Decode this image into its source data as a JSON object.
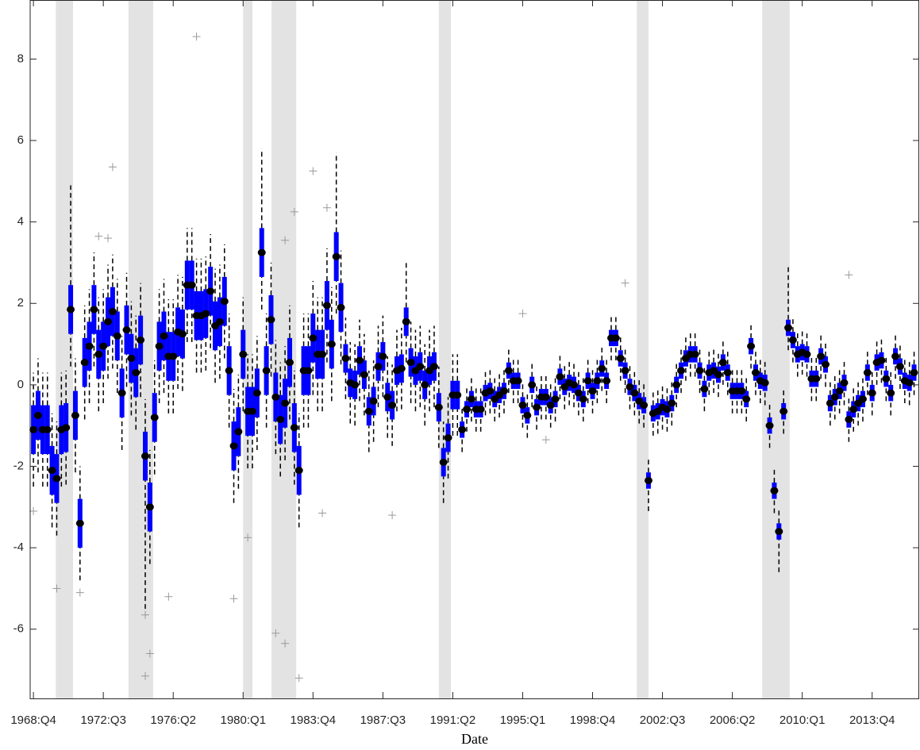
{
  "chart_data": {
    "type": "box",
    "x_label": "Date",
    "xlim": [
      -0.7,
      190.1
    ],
    "xticks": [
      {
        "value": 0,
        "label": "1968:Q4"
      },
      {
        "value": 15,
        "label": "1972:Q3"
      },
      {
        "value": 30,
        "label": "1976:Q2"
      },
      {
        "value": 45,
        "label": "1980:Q1"
      },
      {
        "value": 60,
        "label": "1983:Q4"
      },
      {
        "value": 75,
        "label": "1987:Q3"
      },
      {
        "value": 90,
        "label": "1991:Q2"
      },
      {
        "value": 105,
        "label": "1995:Q1"
      },
      {
        "value": 120,
        "label": "1998:Q4"
      },
      {
        "value": 135,
        "label": "2002:Q3"
      },
      {
        "value": 150,
        "label": "2006:Q2"
      },
      {
        "value": 165,
        "label": "2010:Q1"
      },
      {
        "value": 180,
        "label": "2013:Q4"
      }
    ],
    "ylim": [
      -7.7,
      9.45
    ],
    "yticks": [
      -6,
      -4,
      -2,
      0,
      2,
      4,
      6,
      8
    ],
    "box_color": "#0000ff",
    "median_color": "#000000",
    "whisker_color": "#000000",
    "outlier_color": "#9a9a9a",
    "shade_color": "#e3e3e3",
    "shaded": [
      [
        4.8,
        8.5
      ],
      [
        20.4,
        25.7
      ],
      [
        45,
        47
      ],
      [
        51.1,
        56.4
      ],
      [
        87,
        89.6
      ],
      [
        129.5,
        132
      ],
      [
        156.4,
        162.3
      ]
    ],
    "median": [
      -1.1,
      -0.75,
      -1.1,
      -1.1,
      -2.1,
      -2.3,
      -1.1,
      -1.05,
      1.85,
      -0.75,
      -3.4,
      0.55,
      0.95,
      1.85,
      0.75,
      0.95,
      1.55,
      1.8,
      1.2,
      -0.2,
      1.35,
      0.65,
      0.3,
      1.1,
      -1.75,
      -3.0,
      -0.8,
      0.95,
      1.2,
      0.7,
      0.7,
      1.3,
      1.25,
      2.45,
      2.45,
      1.7,
      1.7,
      1.75,
      2.3,
      1.45,
      1.55,
      2.05,
      0.35,
      -1.5,
      -1.15,
      0.75,
      -0.65,
      -0.65,
      -0.2,
      3.25,
      0.35,
      1.6,
      -0.3,
      -0.85,
      -0.45,
      0.55,
      -1.05,
      -2.1,
      0.35,
      0.35,
      1.15,
      0.75,
      0.75,
      1.95,
      1.0,
      3.15,
      1.9,
      0.65,
      0.05,
      0.0,
      0.6,
      0.25,
      -0.65,
      -0.4,
      0.45,
      0.7,
      -0.3,
      -0.5,
      0.35,
      0.4,
      1.55,
      0.55,
      0.35,
      0.45,
      0.0,
      0.35,
      0.45,
      -0.55,
      -1.9,
      -1.3,
      -0.25,
      -0.25,
      -1.1,
      -0.6,
      -0.35,
      -0.6,
      -0.6,
      -0.2,
      -0.15,
      -0.35,
      -0.25,
      -0.15,
      0.35,
      0.1,
      0.1,
      -0.5,
      -0.75,
      0.0,
      -0.55,
      -0.3,
      -0.3,
      -0.5,
      -0.35,
      0.2,
      -0.05,
      0.05,
      0.0,
      -0.2,
      -0.35,
      0.1,
      -0.15,
      0.1,
      0.4,
      0.1,
      1.15,
      1.15,
      0.65,
      0.35,
      -0.05,
      -0.2,
      -0.4,
      -0.5,
      -2.35,
      -0.7,
      -0.65,
      -0.55,
      -0.6,
      -0.45,
      0.0,
      0.35,
      0.65,
      0.75,
      0.75,
      0.35,
      -0.1,
      0.3,
      0.35,
      0.25,
      0.55,
      0.3,
      -0.15,
      -0.15,
      -0.15,
      -0.35,
      0.95,
      0.3,
      0.1,
      0.05,
      -1.0,
      -2.6,
      -3.6,
      -0.65,
      1.4,
      1.1,
      0.75,
      0.8,
      0.75,
      0.15,
      0.15,
      0.7,
      0.5,
      -0.45,
      -0.3,
      -0.15,
      0.05,
      -0.85,
      -0.6,
      -0.45,
      -0.35,
      0.3,
      -0.2,
      0.55,
      0.6,
      0.15,
      -0.2,
      0.7,
      0.45,
      0.1,
      0.05,
      0.3
    ],
    "q1": [
      -1.7,
      -1.35,
      -1.7,
      -1.7,
      -2.7,
      -2.9,
      -1.7,
      -1.65,
      1.25,
      -1.35,
      -4.0,
      -0.05,
      0.35,
      1.25,
      0.15,
      0.35,
      0.95,
      1.2,
      0.6,
      -0.8,
      0.75,
      0.05,
      -0.3,
      0.5,
      -2.35,
      -3.6,
      -1.4,
      0.35,
      0.6,
      0.1,
      0.1,
      0.7,
      0.65,
      1.85,
      1.85,
      1.1,
      1.1,
      1.15,
      1.7,
      0.85,
      0.95,
      1.45,
      -0.25,
      -2.1,
      -1.75,
      0.15,
      -1.25,
      -1.25,
      -0.8,
      2.65,
      -0.25,
      1.0,
      -0.9,
      -1.45,
      -1.05,
      -0.05,
      -1.65,
      -2.7,
      -0.25,
      -0.25,
      0.55,
      0.15,
      0.15,
      1.35,
      0.4,
      2.55,
      1.3,
      0.3,
      -0.3,
      -0.35,
      0.25,
      -0.1,
      -1.0,
      -0.75,
      0.1,
      0.35,
      -0.65,
      -0.85,
      0.0,
      0.05,
      1.2,
      0.2,
      0.0,
      0.1,
      -0.35,
      0.0,
      0.1,
      -0.9,
      -2.25,
      -1.65,
      -0.6,
      -0.6,
      -1.3,
      -0.8,
      -0.55,
      -0.8,
      -0.8,
      -0.4,
      -0.35,
      -0.55,
      -0.45,
      -0.35,
      0.15,
      -0.1,
      -0.1,
      -0.7,
      -0.95,
      -0.2,
      -0.75,
      -0.5,
      -0.5,
      -0.7,
      -0.55,
      0.0,
      -0.25,
      -0.15,
      -0.2,
      -0.4,
      -0.55,
      -0.1,
      -0.35,
      -0.1,
      0.2,
      -0.1,
      0.95,
      0.95,
      0.45,
      0.15,
      -0.25,
      -0.4,
      -0.6,
      -0.7,
      -2.55,
      -0.9,
      -0.85,
      -0.75,
      -0.8,
      -0.65,
      -0.2,
      0.15,
      0.45,
      0.55,
      0.55,
      0.15,
      -0.3,
      0.1,
      0.15,
      0.05,
      0.35,
      0.1,
      -0.35,
      -0.35,
      -0.35,
      -0.55,
      0.75,
      0.1,
      -0.1,
      -0.15,
      -1.2,
      -2.8,
      -3.8,
      -0.85,
      1.2,
      0.9,
      0.55,
      0.6,
      0.55,
      -0.05,
      -0.05,
      0.5,
      0.3,
      -0.65,
      -0.5,
      -0.35,
      -0.15,
      -1.05,
      -0.8,
      -0.65,
      -0.55,
      0.1,
      -0.4,
      0.35,
      0.4,
      -0.05,
      -0.4,
      0.5,
      0.25,
      -0.1,
      -0.15,
      0.1
    ],
    "q3": [
      -0.5,
      -0.15,
      -0.5,
      -0.5,
      -1.5,
      -1.7,
      -0.5,
      -0.45,
      2.45,
      -0.15,
      -2.8,
      1.15,
      1.55,
      2.45,
      1.35,
      1.55,
      2.15,
      2.4,
      1.8,
      0.4,
      1.95,
      1.25,
      0.9,
      1.7,
      -1.15,
      -2.4,
      -0.2,
      1.55,
      1.8,
      1.3,
      1.3,
      1.9,
      1.85,
      3.05,
      3.05,
      2.3,
      2.3,
      2.35,
      2.9,
      2.05,
      2.15,
      2.65,
      0.95,
      -0.9,
      -0.55,
      1.35,
      -0.05,
      -0.05,
      0.4,
      3.85,
      0.95,
      2.2,
      0.3,
      -0.25,
      0.15,
      1.15,
      -0.45,
      -1.5,
      0.95,
      0.95,
      1.75,
      1.35,
      1.35,
      2.55,
      1.6,
      3.75,
      2.5,
      1.0,
      0.4,
      0.35,
      0.95,
      0.6,
      -0.3,
      -0.05,
      0.8,
      1.05,
      0.05,
      -0.15,
      0.7,
      0.75,
      1.9,
      0.9,
      0.7,
      0.8,
      0.35,
      0.7,
      0.8,
      -0.2,
      -1.55,
      -0.95,
      0.1,
      0.1,
      -0.9,
      -0.4,
      -0.15,
      -0.4,
      -0.4,
      0.0,
      0.05,
      -0.15,
      -0.05,
      0.05,
      0.55,
      0.3,
      0.3,
      -0.3,
      -0.55,
      0.2,
      -0.35,
      -0.1,
      -0.1,
      -0.3,
      -0.15,
      0.4,
      0.15,
      0.25,
      0.2,
      0.0,
      -0.15,
      0.3,
      0.05,
      0.3,
      0.6,
      0.3,
      1.35,
      1.35,
      0.85,
      0.55,
      0.15,
      0.0,
      -0.2,
      -0.3,
      -2.15,
      -0.5,
      -0.45,
      -0.35,
      -0.4,
      -0.25,
      0.2,
      0.55,
      0.85,
      0.95,
      0.95,
      0.55,
      0.1,
      0.5,
      0.55,
      0.45,
      0.75,
      0.5,
      0.05,
      0.05,
      0.05,
      -0.15,
      1.15,
      0.5,
      0.3,
      0.25,
      -0.8,
      -2.4,
      -3.4,
      -0.45,
      1.6,
      1.3,
      0.95,
      1.0,
      0.95,
      0.35,
      0.35,
      0.9,
      0.7,
      -0.25,
      -0.1,
      0.05,
      0.25,
      -0.65,
      -0.4,
      -0.25,
      -0.15,
      0.5,
      0.0,
      0.75,
      0.8,
      0.35,
      0.0,
      0.9,
      0.65,
      0.3,
      0.25,
      0.5
    ],
    "whisker_low": [
      -2.5,
      -2.15,
      -2.5,
      -2.5,
      -3.5,
      -3.7,
      -2.5,
      -2.45,
      0.45,
      -2.15,
      -4.8,
      -0.85,
      -0.45,
      0.45,
      -0.65,
      -0.45,
      0.15,
      0.4,
      -0.2,
      -1.6,
      -0.05,
      -0.75,
      -1.1,
      -0.3,
      -5.5,
      -4.4,
      -2.2,
      -0.45,
      -0.2,
      -0.7,
      -0.7,
      -0.1,
      -0.15,
      1.05,
      1.05,
      0.3,
      0.3,
      0.35,
      0.9,
      0.05,
      0.15,
      0.65,
      -1.05,
      -2.9,
      -2.55,
      -0.65,
      -2.05,
      -2.05,
      -1.6,
      1.85,
      -1.05,
      0.2,
      -1.7,
      -2.25,
      -1.85,
      -0.85,
      -2.45,
      -3.5,
      -1.05,
      -1.05,
      -0.25,
      -0.65,
      -0.65,
      0.55,
      -0.4,
      1.75,
      0.5,
      -0.35,
      -0.95,
      -1.0,
      -0.4,
      -0.75,
      -1.65,
      -1.4,
      -0.55,
      -0.3,
      -1.3,
      -1.5,
      -0.65,
      -0.6,
      0.55,
      -0.45,
      -0.65,
      -0.55,
      -1.0,
      -0.65,
      -0.55,
      -1.55,
      -2.9,
      -2.3,
      -1.25,
      -1.25,
      -1.65,
      -1.15,
      -0.9,
      -1.15,
      -1.15,
      -0.75,
      -0.7,
      -0.9,
      -0.8,
      -0.7,
      -0.2,
      -0.45,
      -0.45,
      -1.05,
      -1.3,
      -0.55,
      -1.1,
      -0.85,
      -0.85,
      -1.05,
      -0.9,
      -0.35,
      -0.6,
      -0.5,
      -0.55,
      -0.75,
      -0.9,
      -0.45,
      -0.7,
      -0.45,
      -0.15,
      -0.45,
      0.6,
      0.6,
      0.1,
      -0.2,
      -0.6,
      -0.75,
      -0.95,
      -1.05,
      -3.1,
      -1.25,
      -1.2,
      -1.1,
      -1.15,
      -1.0,
      -0.55,
      -0.2,
      0.1,
      0.2,
      0.2,
      -0.2,
      -0.65,
      -0.25,
      -0.2,
      -0.3,
      0.0,
      -0.25,
      -0.7,
      -0.7,
      -0.7,
      -0.9,
      0.4,
      -0.25,
      -0.45,
      -0.5,
      -1.55,
      -3.15,
      -4.6,
      -1.2,
      0.85,
      0.55,
      0.2,
      0.25,
      0.2,
      -0.4,
      -0.4,
      0.15,
      -0.05,
      -1.0,
      -0.85,
      -0.7,
      -0.5,
      -1.4,
      -1.15,
      -1.0,
      -0.9,
      -0.25,
      -0.75,
      0.0,
      0.05,
      -0.4,
      -0.75,
      0.15,
      -0.1,
      -0.45,
      -0.5,
      -0.25
    ],
    "whisker_high": [
      0.3,
      0.65,
      0.3,
      0.3,
      -0.7,
      -0.9,
      0.3,
      0.35,
      4.9,
      0.65,
      -2.0,
      1.95,
      2.35,
      3.25,
      2.15,
      2.35,
      2.95,
      3.2,
      2.6,
      1.2,
      2.75,
      2.05,
      1.7,
      2.5,
      -0.35,
      -1.6,
      0.6,
      2.35,
      2.6,
      2.1,
      2.1,
      2.7,
      2.65,
      3.85,
      3.85,
      3.1,
      3.1,
      3.15,
      3.7,
      2.85,
      2.95,
      3.45,
      1.75,
      -0.1,
      0.25,
      2.15,
      0.75,
      0.75,
      1.2,
      5.8,
      1.75,
      3.0,
      1.1,
      0.55,
      0.95,
      1.95,
      0.35,
      -0.7,
      1.75,
      1.75,
      2.55,
      2.15,
      2.15,
      3.35,
      2.4,
      5.7,
      3.3,
      1.65,
      1.05,
      1.0,
      1.6,
      1.25,
      0.35,
      0.6,
      1.45,
      1.7,
      0.7,
      0.5,
      1.35,
      1.4,
      3.05,
      1.55,
      1.35,
      1.45,
      1.0,
      1.35,
      1.45,
      0.45,
      -0.9,
      -0.3,
      0.75,
      0.75,
      -0.55,
      -0.05,
      0.2,
      -0.05,
      -0.05,
      0.35,
      0.4,
      0.2,
      0.3,
      0.4,
      0.9,
      0.65,
      0.65,
      0.05,
      -0.2,
      0.55,
      0.0,
      0.25,
      0.25,
      0.05,
      0.2,
      0.75,
      0.5,
      0.6,
      0.55,
      0.35,
      0.2,
      0.65,
      0.4,
      0.65,
      0.95,
      0.65,
      1.7,
      1.7,
      1.2,
      0.9,
      0.5,
      0.35,
      0.15,
      0.05,
      -1.8,
      -0.15,
      -0.1,
      0.0,
      -0.05,
      0.1,
      0.55,
      0.9,
      1.2,
      1.3,
      1.3,
      0.9,
      0.45,
      0.85,
      0.9,
      0.8,
      1.1,
      0.85,
      0.4,
      0.4,
      0.4,
      0.2,
      1.5,
      0.85,
      0.65,
      0.6,
      -0.45,
      -2.05,
      -3.05,
      -0.1,
      2.9,
      1.65,
      1.3,
      1.35,
      1.3,
      0.7,
      0.7,
      1.25,
      1.05,
      0.1,
      0.25,
      0.4,
      0.6,
      -0.3,
      -0.05,
      0.1,
      0.2,
      0.85,
      0.35,
      1.1,
      1.15,
      0.7,
      0.35,
      1.25,
      1.0,
      0.65,
      0.6,
      0.85
    ],
    "outliers": {
      "x": [
        35,
        17,
        24,
        25,
        24,
        5,
        10,
        29,
        43,
        52,
        54,
        57,
        60,
        63,
        77,
        56,
        54,
        175,
        127,
        16,
        14,
        0,
        46,
        62,
        105,
        110
      ],
      "values": [
        8.55,
        5.35,
        -7.15,
        -6.6,
        -5.65,
        -5.0,
        -5.1,
        -5.2,
        -5.25,
        -6.1,
        -6.35,
        -7.2,
        5.25,
        4.35,
        -3.2,
        4.25,
        3.55,
        2.7,
        2.5,
        3.6,
        3.65,
        -3.1,
        -3.75,
        -3.15,
        1.75,
        -1.35
      ]
    }
  }
}
